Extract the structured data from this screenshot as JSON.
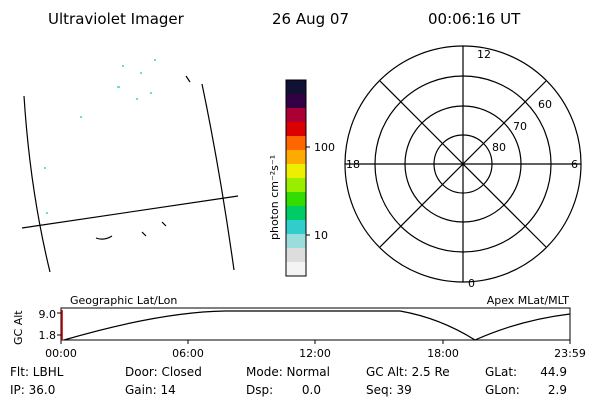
{
  "header": {
    "instrument": "Ultraviolet Imager",
    "date": "26 Aug 07",
    "time": "00:06:16 UT"
  },
  "colorbar": {
    "label": "photon cm⁻²s⁻¹",
    "ticks": [
      "100",
      "10"
    ],
    "colors": [
      "#111133",
      "#330044",
      "#aa0033",
      "#dd0000",
      "#ff6600",
      "#ffaa00",
      "#eeee00",
      "#99ee00",
      "#33dd00",
      "#00cc66",
      "#33cccc",
      "#99dddd",
      "#dddddd",
      "#f4f4f4"
    ]
  },
  "polar": {
    "mlt_labels": {
      "top": "12",
      "left": "18",
      "right": "6",
      "bottom": "0"
    },
    "lat_labels": [
      "60",
      "70",
      "80"
    ]
  },
  "altitude_plot": {
    "ylabel": "GC Alt",
    "yticks": [
      "9.0",
      "1.8"
    ],
    "left_title": "Geographic Lat/Lon",
    "right_title": "Apex MLat/MLT",
    "xticks": [
      "00:00",
      "06:00",
      "12:00",
      "18:00",
      "23:59"
    ]
  },
  "info": {
    "row1": {
      "flt": "Flt: LBHL",
      "door": "Door: Closed",
      "mode": "Mode: Normal",
      "gcalt": "GC Alt: 2.5 Re",
      "glat_label": "GLat:",
      "glat_value": "44.9"
    },
    "row2": {
      "ip": "IP: 36.0",
      "gain": "Gain: 14",
      "dsp_label": "Dsp:",
      "dsp_value": "0.0",
      "seq": "Seq: 39",
      "glon_label": "GLon:",
      "glon_value": "2.9"
    }
  },
  "accent_color": "#cc0000"
}
